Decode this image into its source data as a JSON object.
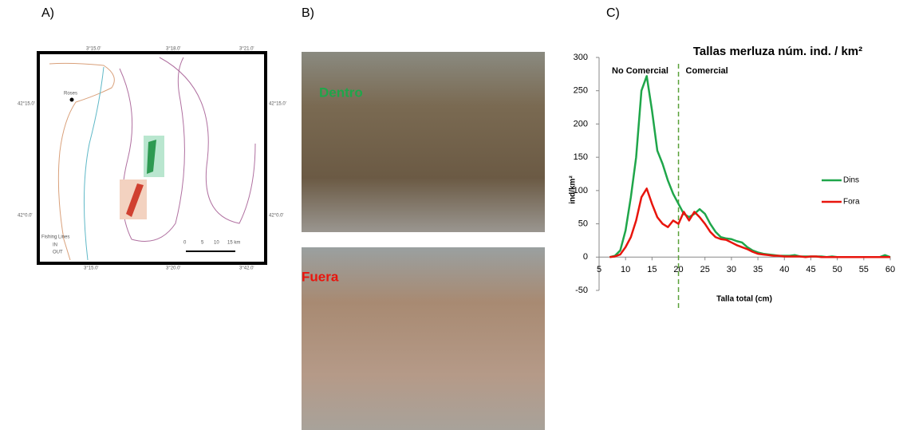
{
  "panel_labels": [
    "A)",
    "B)",
    "C)"
  ],
  "photo_labels": [
    "Dentro",
    "Fuera"
  ],
  "map_labels": {
    "top": [
      "3°15.0'",
      "3°18.0'",
      "3°21.0'"
    ],
    "left": [
      "42°15.0'",
      "42°0.0'"
    ],
    "right": [
      "42°15.0'",
      "42°0.0'"
    ],
    "bottom": [
      "3°15.0'",
      "3°20.0'",
      "3°42.0'"
    ],
    "town": "Roses",
    "legend_title": "Fishing Lines",
    "legend_items": [
      "IN",
      "OUT"
    ],
    "scale": [
      "0",
      "5",
      "10",
      "15 km"
    ]
  },
  "chart_data": {
    "type": "line",
    "title": "Tallas merluza núm. ind. / km²",
    "x_label": "Talla total (cm)",
    "y_label": "ind/km²",
    "annotations": [
      "No Comercial",
      "Comercial"
    ],
    "threshold_x": 20,
    "x": [
      7,
      8,
      9,
      10,
      11,
      12,
      13,
      14,
      15,
      16,
      17,
      18,
      19,
      20,
      21,
      22,
      23,
      24,
      25,
      26,
      27,
      28,
      29,
      30,
      31,
      32,
      33,
      34,
      35,
      36,
      37,
      38,
      39,
      40,
      41,
      42,
      43,
      44,
      45,
      46,
      47,
      48,
      49,
      50,
      51,
      52,
      53,
      54,
      55,
      56,
      57,
      58,
      59,
      60
    ],
    "series": [
      {
        "name": "Dins",
        "color": "#1fa64a",
        "values": [
          0,
          2,
          10,
          40,
          90,
          150,
          250,
          272,
          220,
          160,
          140,
          115,
          95,
          80,
          65,
          60,
          65,
          72,
          65,
          50,
          38,
          30,
          28,
          27,
          24,
          22,
          15,
          10,
          7,
          5,
          4,
          3,
          2,
          2,
          2,
          3,
          1,
          1,
          1,
          1,
          1,
          0,
          1,
          0,
          0,
          0,
          0,
          0,
          0,
          0,
          0,
          0,
          3,
          0
        ]
      },
      {
        "name": "Fora",
        "color": "#e8150d",
        "values": [
          0,
          1,
          4,
          15,
          30,
          55,
          90,
          103,
          80,
          60,
          50,
          45,
          55,
          50,
          68,
          55,
          68,
          60,
          50,
          38,
          30,
          27,
          26,
          22,
          18,
          15,
          12,
          8,
          5,
          4,
          3,
          2,
          2,
          1,
          1,
          1,
          1,
          0,
          1,
          1,
          0,
          0,
          0,
          0,
          0,
          0,
          0,
          0,
          0,
          0,
          0,
          0,
          0,
          0
        ]
      }
    ],
    "xlim": [
      5,
      60
    ],
    "xticks": [
      5,
      10,
      15,
      20,
      25,
      30,
      35,
      40,
      45,
      50,
      55,
      60
    ],
    "ylim": [
      -50,
      300
    ],
    "yticks": [
      -50,
      0,
      50,
      100,
      150,
      200,
      250,
      300
    ],
    "legend": "right"
  }
}
